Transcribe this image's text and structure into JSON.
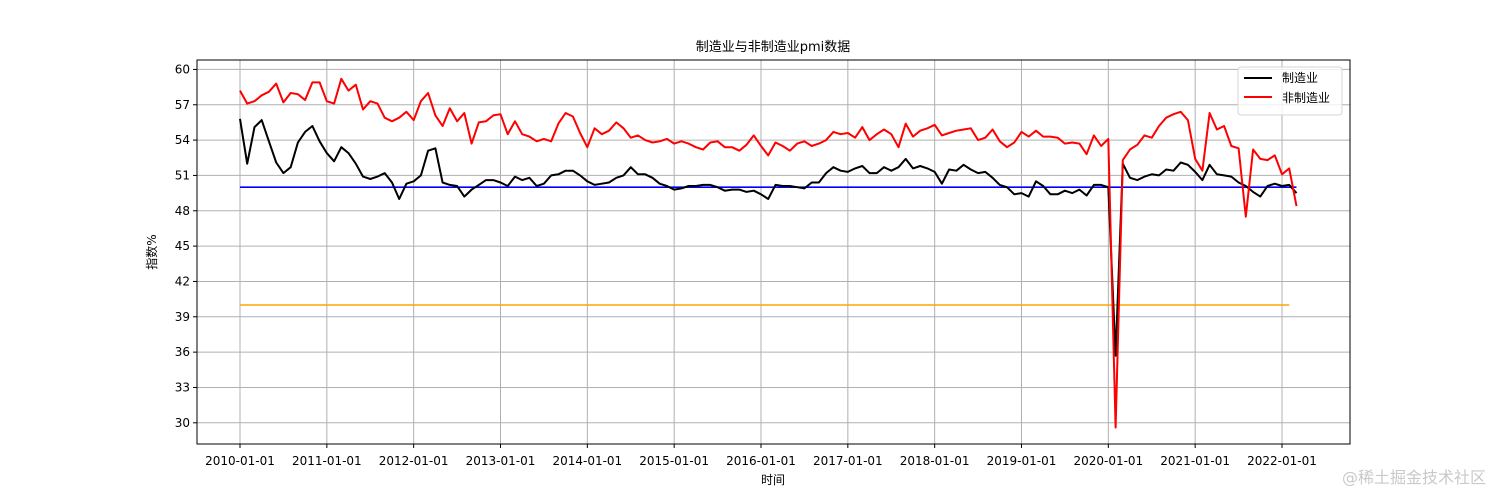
{
  "chart_data": {
    "type": "line",
    "title": "制造业与非制造业pmi数据",
    "xlabel": "时间",
    "ylabel": "指数%",
    "x_start": "2010-01",
    "x_frequency": "monthly",
    "xticks": [
      "2010-01-01",
      "2011-01-01",
      "2012-01-01",
      "2013-01-01",
      "2014-01-01",
      "2015-01-01",
      "2016-01-01",
      "2017-01-01",
      "2018-01-01",
      "2019-01-01",
      "2020-01-01",
      "2021-01-01",
      "2022-01-01"
    ],
    "yticks": [
      30,
      33,
      36,
      39,
      42,
      45,
      48,
      51,
      54,
      57,
      60
    ],
    "ylim": [
      28.2,
      60.8
    ],
    "grid": true,
    "legend_position": "top-right",
    "series": [
      {
        "name": "制造业",
        "color": "#000000",
        "values": [
          55.8,
          52.0,
          55.1,
          55.7,
          53.9,
          52.1,
          51.2,
          51.7,
          53.8,
          54.7,
          55.2,
          53.9,
          52.9,
          52.2,
          53.4,
          52.9,
          52.0,
          50.9,
          50.7,
          50.9,
          51.2,
          50.4,
          49.0,
          50.3,
          50.5,
          51.0,
          53.1,
          53.3,
          50.4,
          50.2,
          50.1,
          49.2,
          49.8,
          50.2,
          50.6,
          50.6,
          50.4,
          50.1,
          50.9,
          50.6,
          50.8,
          50.1,
          50.3,
          51.0,
          51.1,
          51.4,
          51.4,
          51.0,
          50.5,
          50.2,
          50.3,
          50.4,
          50.8,
          51.0,
          51.7,
          51.1,
          51.1,
          50.8,
          50.3,
          50.1,
          49.8,
          49.9,
          50.1,
          50.1,
          50.2,
          50.2,
          50.0,
          49.7,
          49.8,
          49.8,
          49.6,
          49.7,
          49.4,
          49.0,
          50.2,
          50.1,
          50.1,
          50.0,
          49.9,
          50.4,
          50.4,
          51.2,
          51.7,
          51.4,
          51.3,
          51.6,
          51.8,
          51.2,
          51.2,
          51.7,
          51.4,
          51.7,
          52.4,
          51.6,
          51.8,
          51.6,
          51.3,
          50.3,
          51.5,
          51.4,
          51.9,
          51.5,
          51.2,
          51.3,
          50.8,
          50.2,
          50.0,
          49.4,
          49.5,
          49.2,
          50.5,
          50.1,
          49.4,
          49.4,
          49.7,
          49.5,
          49.8,
          49.3,
          50.2,
          50.2,
          50.0,
          35.7,
          52.0,
          50.8,
          50.6,
          50.9,
          51.1,
          51.0,
          51.5,
          51.4,
          52.1,
          51.9,
          51.3,
          50.6,
          51.9,
          51.1,
          51.0,
          50.9,
          50.4,
          50.1,
          49.6,
          49.2,
          50.1,
          50.3,
          50.1,
          50.2,
          49.5
        ]
      },
      {
        "name": "非制造业",
        "color": "#ff0000",
        "values": [
          58.2,
          57.1,
          57.3,
          57.8,
          58.1,
          58.8,
          57.2,
          58.0,
          57.9,
          57.4,
          58.9,
          58.9,
          57.3,
          57.1,
          59.2,
          58.2,
          58.7,
          56.6,
          57.3,
          57.1,
          55.9,
          55.6,
          55.9,
          56.4,
          55.7,
          57.3,
          58.0,
          56.1,
          55.2,
          56.7,
          55.6,
          56.3,
          53.7,
          55.5,
          55.6,
          56.1,
          56.2,
          54.5,
          55.6,
          54.5,
          54.3,
          53.9,
          54.1,
          53.9,
          55.4,
          56.3,
          56.0,
          54.6,
          53.4,
          55.0,
          54.5,
          54.8,
          55.5,
          55.0,
          54.2,
          54.4,
          54.0,
          53.8,
          53.9,
          54.1,
          53.7,
          53.9,
          53.7,
          53.4,
          53.2,
          53.8,
          53.9,
          53.4,
          53.4,
          53.1,
          53.6,
          54.4,
          53.5,
          52.7,
          53.8,
          53.5,
          53.1,
          53.7,
          53.9,
          53.5,
          53.7,
          54.0,
          54.7,
          54.5,
          54.6,
          54.2,
          55.1,
          54.0,
          54.5,
          54.9,
          54.5,
          53.4,
          55.4,
          54.3,
          54.8,
          55.0,
          55.3,
          54.4,
          54.6,
          54.8,
          54.9,
          55.0,
          54.0,
          54.2,
          54.9,
          53.9,
          53.4,
          53.8,
          54.7,
          54.3,
          54.8,
          54.3,
          54.3,
          54.2,
          53.7,
          53.8,
          53.7,
          52.8,
          54.4,
          53.5,
          54.1,
          29.6,
          52.3,
          53.2,
          53.6,
          54.4,
          54.2,
          55.2,
          55.9,
          56.2,
          56.4,
          55.7,
          52.4,
          51.4,
          56.3,
          54.9,
          55.2,
          53.5,
          53.3,
          47.5,
          53.2,
          52.4,
          52.3,
          52.7,
          51.1,
          51.6,
          48.4
        ]
      }
    ],
    "reference_lines": [
      {
        "value": 50,
        "color": "#0000ff",
        "from": "2010-01",
        "to": "2022-03"
      },
      {
        "value": 40,
        "color": "#ffa500",
        "from": "2010-01",
        "to": "2022-02"
      }
    ]
  },
  "watermark": "@稀土掘金技术社区"
}
